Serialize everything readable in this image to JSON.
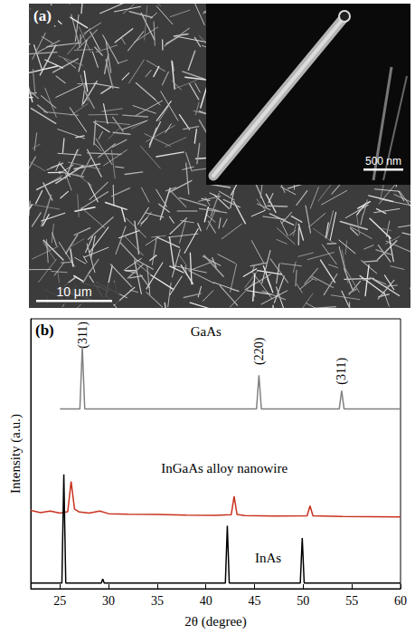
{
  "image_panel": {
    "label": "(a)",
    "scale_bar": "10 μm",
    "inset_scale_bar": "500 nm"
  },
  "chart_data": {
    "type": "line",
    "panel_label": "(b)",
    "x_label": "2θ (degree)",
    "y_label": "Intensity (a.u.)",
    "xlim": [
      22,
      60
    ],
    "xticks": [
      25,
      30,
      35,
      40,
      45,
      50,
      55,
      60
    ],
    "ylim": [
      0,
      100
    ],
    "yticks": [],
    "tick_labels": "x",
    "grid": false,
    "series": [
      {
        "name": "GaAs",
        "color": "#808080",
        "label_at": [
          40,
          95.2
        ],
        "x": [
          25,
          27.05,
          27.3,
          27.55,
          45.2,
          45.45,
          45.7,
          53.7,
          53.95,
          54.2,
          60
        ],
        "values": [
          66.6,
          66.6,
          89.6,
          66.6,
          66.6,
          79.1,
          66.6,
          66.6,
          73.4,
          66.6,
          66.6
        ]
      },
      {
        "name": "InGaAs alloy nanowire",
        "color": "#c8321e",
        "label_at": [
          41.9,
          44.5
        ],
        "x": [
          22,
          23,
          24,
          25,
          25.8,
          26.15,
          26.5,
          27,
          28,
          29.1,
          30,
          32,
          35,
          38,
          41,
          42.6,
          42.9,
          43.2,
          44,
          47,
          50.4,
          50.7,
          51,
          54,
          57,
          60
        ],
        "values": [
          29,
          28.2,
          28.8,
          28,
          28.5,
          39.7,
          29.5,
          28.4,
          28,
          28.8,
          27.8,
          27.6,
          27.5,
          27.3,
          27.2,
          27.4,
          34.3,
          27.5,
          27.1,
          26.9,
          27,
          30.7,
          27,
          26.8,
          26.7,
          26.6
        ]
      },
      {
        "name": "InAs",
        "color": "#000000",
        "label_at": [
          46.4,
          11.3
        ],
        "x": [
          22,
          25.2,
          25.4,
          25.6,
          29.25,
          29.4,
          29.55,
          42,
          42.2,
          42.4,
          49.7,
          49.9,
          50.1,
          60
        ],
        "values": [
          2.1,
          2.1,
          42.4,
          2.1,
          2.1,
          3.6,
          2.1,
          2.1,
          23.3,
          2.1,
          2.1,
          18.8,
          2.1,
          2.1
        ]
      }
    ],
    "annotations": [
      {
        "text": "(311)",
        "x": 27.3,
        "y": 94
      },
      {
        "text": "(220)",
        "x": 45.45,
        "y": 88
      },
      {
        "text": "(311)",
        "x": 53.95,
        "y": 80.6
      }
    ]
  }
}
